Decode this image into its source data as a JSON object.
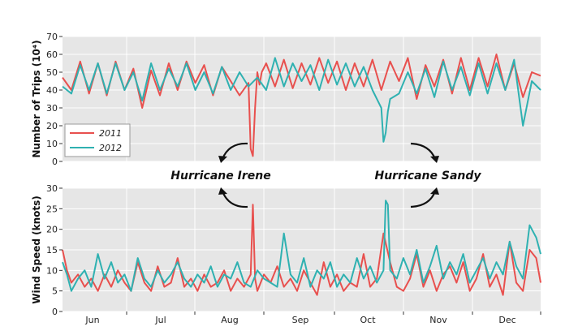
{
  "chart_data": [
    {
      "type": "line",
      "ylabel": "Number of Trips (10⁴)",
      "ylim": [
        0,
        70
      ],
      "yticks": [
        0,
        10,
        20,
        30,
        40,
        50,
        60,
        70
      ],
      "grid": true,
      "legend_placement": "lower-left",
      "months": [
        "Jun",
        "Jul",
        "Aug",
        "Sep",
        "Oct",
        "Nov",
        "Dec"
      ],
      "x_start": "May 25",
      "x_end": "Dec 31",
      "colors": {
        "2011": "#e8504e",
        "2012": "#2fb1b1"
      },
      "series": [
        {
          "name": "2011",
          "x": [
            0,
            4,
            8,
            12,
            16,
            20,
            24,
            28,
            32,
            36,
            40,
            44,
            48,
            52,
            56,
            60,
            64,
            68,
            72,
            76,
            80,
            84,
            85,
            86,
            87,
            88,
            89,
            90,
            92,
            96,
            100,
            104,
            108,
            112,
            116,
            120,
            124,
            128,
            132,
            136,
            140,
            144,
            148,
            152,
            156,
            160,
            164,
            168,
            172,
            176,
            180,
            184,
            188,
            192,
            196,
            200,
            204,
            208,
            212,
            216
          ],
          "values": [
            47,
            40,
            56,
            38,
            55,
            37,
            56,
            40,
            52,
            30,
            51,
            37,
            55,
            40,
            56,
            44,
            54,
            37,
            53,
            45,
            37,
            44,
            7,
            3,
            30,
            50,
            43,
            50,
            55,
            42,
            57,
            41,
            55,
            43,
            58,
            44,
            56,
            40,
            55,
            42,
            57,
            40,
            56,
            45,
            58,
            35,
            54,
            42,
            57,
            38,
            58,
            40,
            58,
            42,
            60,
            40,
            55,
            36,
            50,
            48
          ]
        },
        {
          "name": "2012",
          "x": [
            0,
            4,
            8,
            12,
            16,
            20,
            24,
            28,
            32,
            36,
            40,
            44,
            48,
            52,
            56,
            60,
            64,
            68,
            72,
            76,
            80,
            84,
            88,
            92,
            96,
            100,
            104,
            108,
            112,
            116,
            120,
            124,
            128,
            132,
            136,
            140,
            144,
            145,
            146,
            147,
            148,
            152,
            156,
            160,
            164,
            168,
            172,
            176,
            180,
            184,
            188,
            192,
            196,
            200,
            204,
            208,
            212,
            216
          ],
          "values": [
            42,
            38,
            54,
            40,
            55,
            38,
            55,
            40,
            50,
            34,
            55,
            40,
            52,
            42,
            55,
            40,
            50,
            38,
            53,
            40,
            50,
            42,
            47,
            40,
            58,
            42,
            55,
            45,
            54,
            40,
            57,
            43,
            55,
            42,
            53,
            40,
            30,
            11,
            16,
            28,
            35,
            38,
            50,
            38,
            52,
            36,
            56,
            40,
            53,
            37,
            55,
            38,
            55,
            40,
            57,
            20,
            45,
            40
          ]
        }
      ]
    },
    {
      "type": "line",
      "ylabel": "Wind Speed (knots)",
      "ylim": [
        0,
        30
      ],
      "yticks": [
        0,
        5,
        10,
        15,
        20,
        25,
        30
      ],
      "grid": true,
      "months": [
        "Jun",
        "Jul",
        "Aug",
        "Sep",
        "Oct",
        "Nov",
        "Dec"
      ],
      "series": [
        {
          "name": "2011",
          "x": [
            0,
            2,
            4,
            7,
            10,
            13,
            16,
            19,
            22,
            25,
            28,
            31,
            34,
            37,
            40,
            43,
            46,
            49,
            52,
            55,
            58,
            61,
            64,
            67,
            70,
            73,
            76,
            79,
            82,
            85,
            86,
            87,
            88,
            91,
            94,
            97,
            100,
            103,
            106,
            109,
            112,
            115,
            118,
            121,
            124,
            127,
            130,
            133,
            136,
            139,
            142,
            145,
            148,
            151,
            154,
            157,
            160,
            163,
            166,
            169,
            172,
            175,
            178,
            181,
            184,
            187,
            190,
            193,
            196,
            199,
            202,
            205,
            208,
            211,
            214,
            216
          ],
          "values": [
            15,
            10,
            7,
            9,
            6,
            8,
            5,
            9,
            6,
            10,
            7,
            5,
            12,
            7,
            5,
            11,
            6,
            7,
            13,
            6,
            8,
            5,
            9,
            6,
            7,
            10,
            5,
            8,
            6,
            9,
            26,
            8,
            5,
            9,
            7,
            11,
            6,
            8,
            5,
            10,
            7,
            4,
            12,
            6,
            9,
            5,
            7,
            6,
            14,
            6,
            8,
            19,
            12,
            6,
            5,
            8,
            14,
            6,
            10,
            5,
            9,
            11,
            7,
            12,
            5,
            8,
            14,
            6,
            9,
            4,
            17,
            7,
            5,
            15,
            13,
            7
          ]
        },
        {
          "name": "2012",
          "x": [
            0,
            2,
            4,
            7,
            10,
            13,
            16,
            19,
            22,
            25,
            28,
            31,
            34,
            37,
            40,
            43,
            46,
            49,
            52,
            55,
            58,
            61,
            64,
            67,
            70,
            73,
            76,
            79,
            82,
            85,
            88,
            91,
            94,
            97,
            100,
            103,
            106,
            109,
            112,
            115,
            118,
            121,
            124,
            127,
            130,
            133,
            136,
            139,
            142,
            145,
            146,
            147,
            148,
            151,
            154,
            157,
            160,
            163,
            166,
            169,
            172,
            175,
            178,
            181,
            184,
            187,
            190,
            193,
            196,
            199,
            202,
            205,
            208,
            211,
            214,
            216
          ],
          "values": [
            12,
            9,
            5,
            8,
            10,
            6,
            14,
            8,
            12,
            7,
            9,
            5,
            13,
            8,
            6,
            10,
            7,
            9,
            12,
            8,
            6,
            9,
            7,
            11,
            6,
            9,
            8,
            12,
            7,
            6,
            10,
            8,
            7,
            6,
            19,
            9,
            7,
            13,
            6,
            10,
            8,
            12,
            6,
            9,
            7,
            13,
            8,
            11,
            7,
            10,
            27,
            26,
            10,
            8,
            13,
            9,
            15,
            7,
            11,
            16,
            8,
            12,
            9,
            14,
            7,
            10,
            13,
            8,
            12,
            9,
            17,
            11,
            8,
            21,
            18,
            14
          ]
        }
      ]
    }
  ],
  "annotations": [
    {
      "text": "Hurricane Irene"
    },
    {
      "text": "Hurricane Sandy"
    }
  ]
}
